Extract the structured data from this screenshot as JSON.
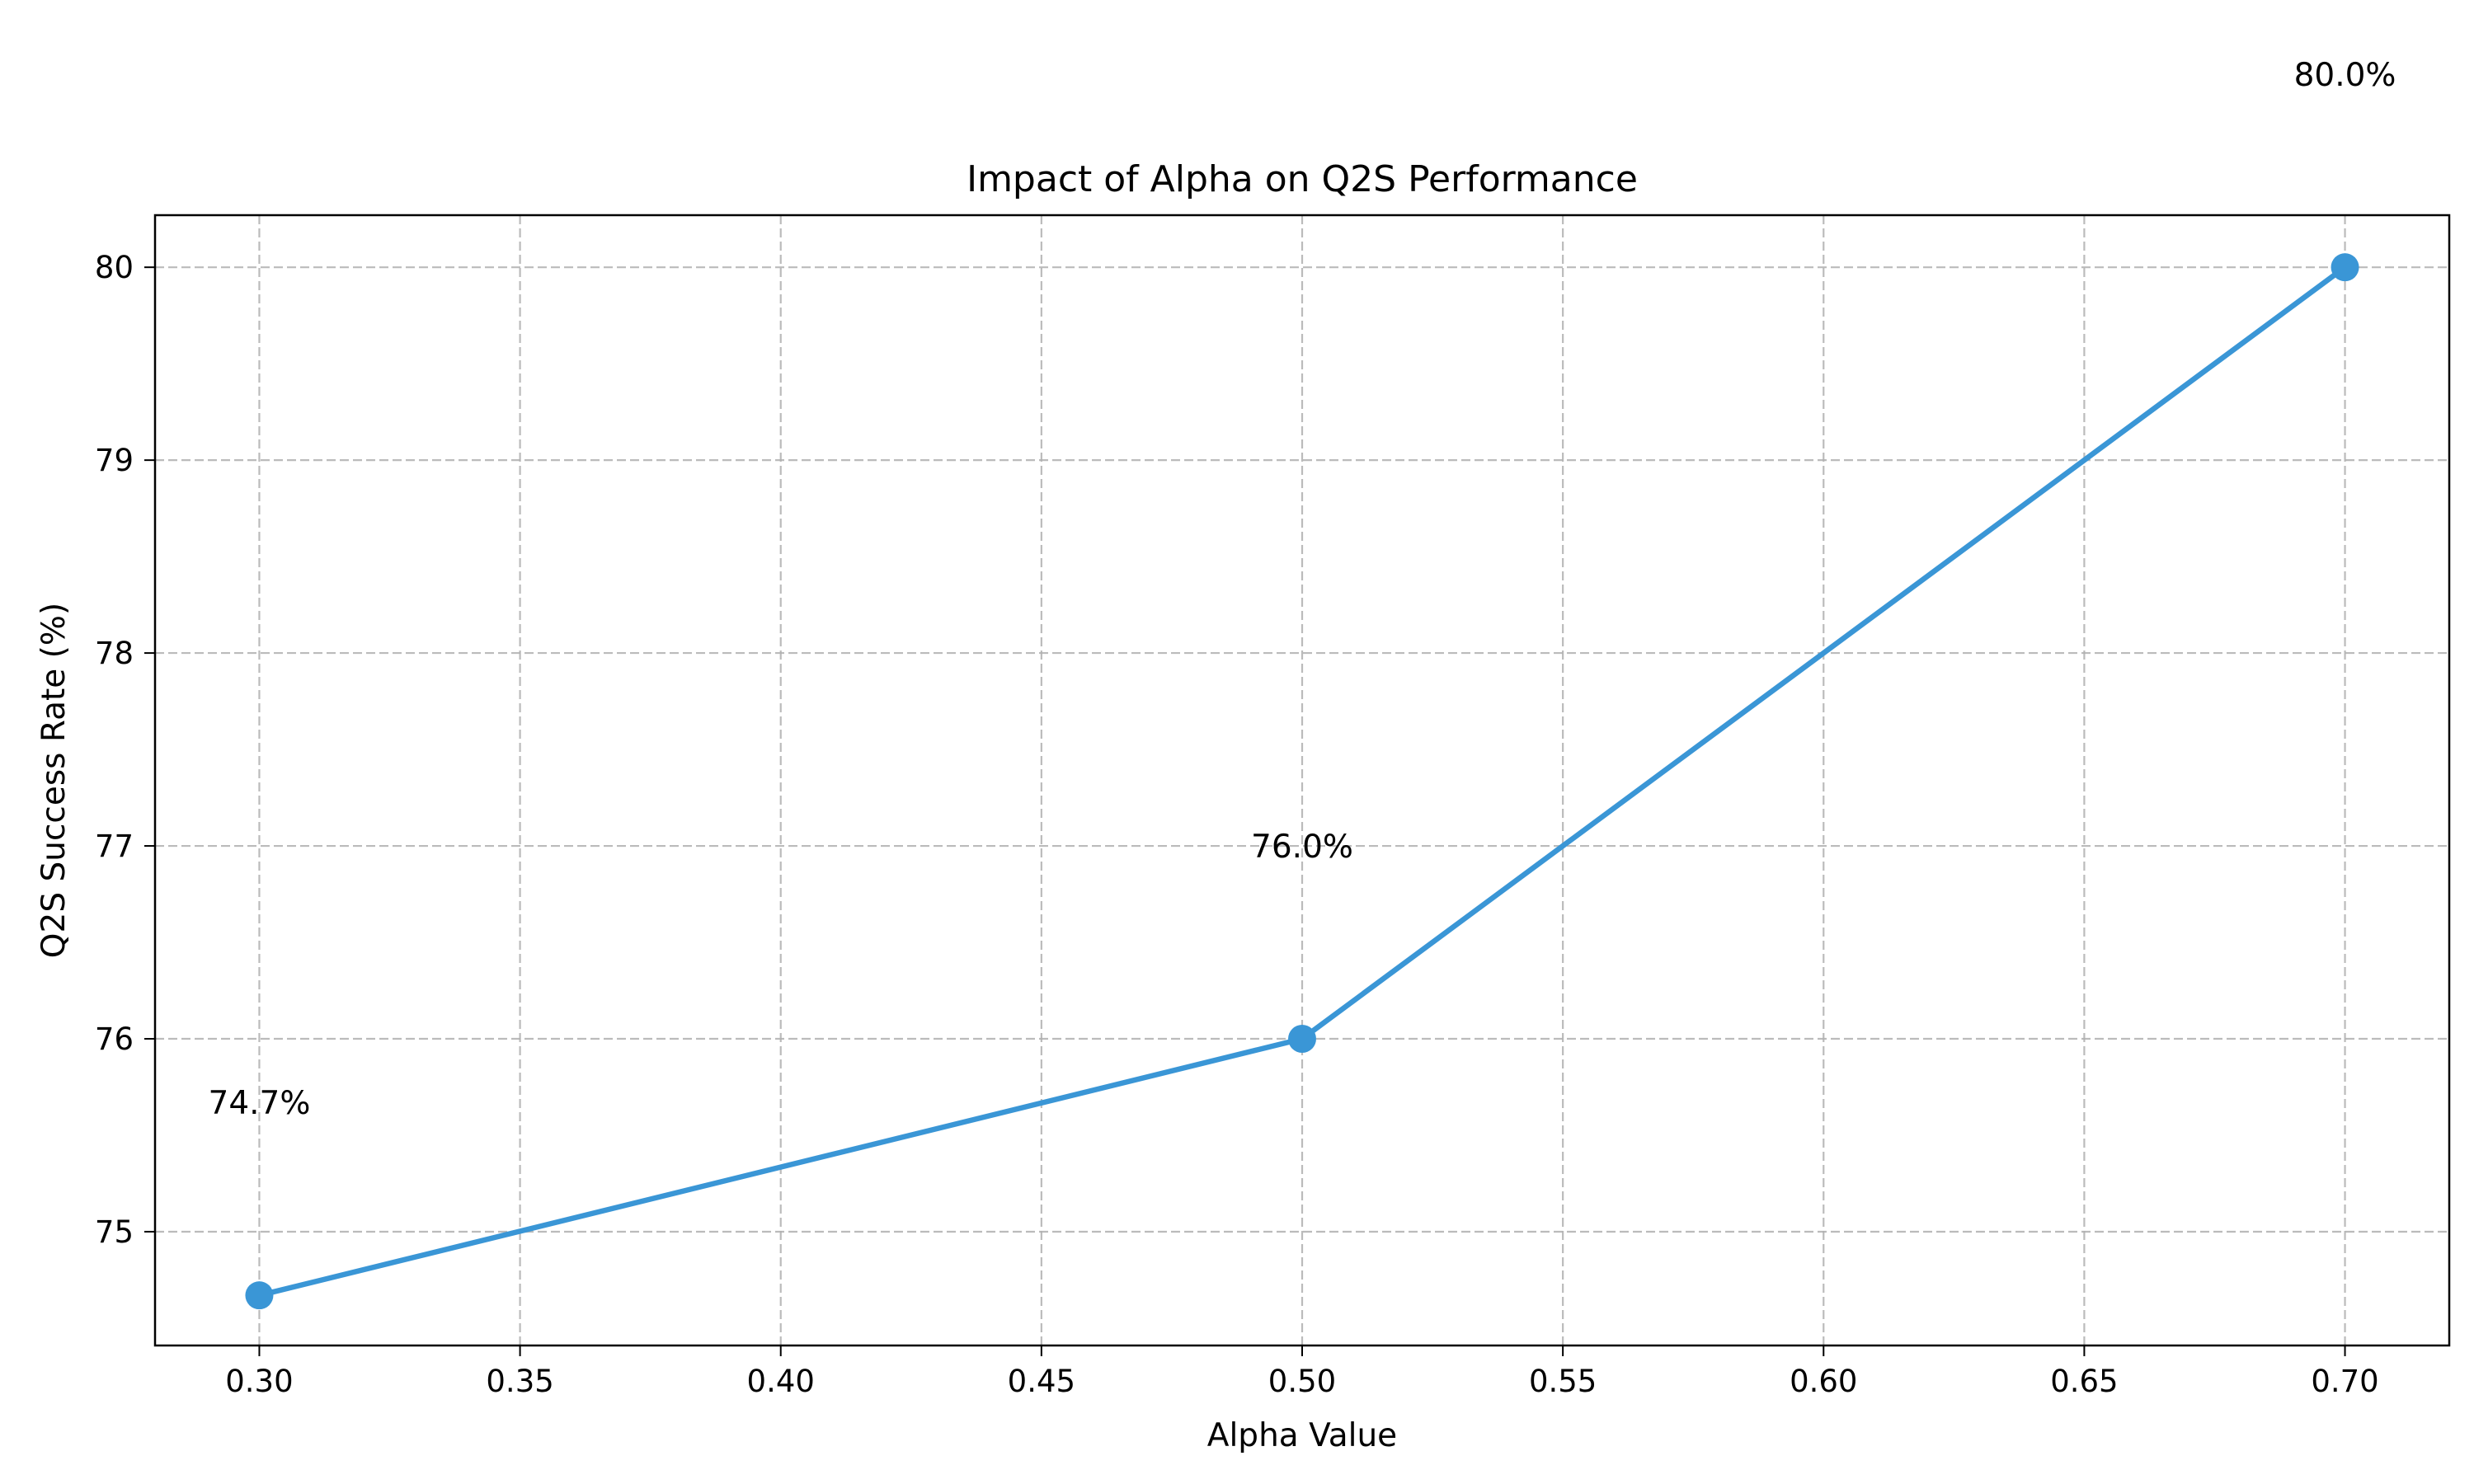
{
  "chart_data": {
    "type": "line",
    "title": "Impact of Alpha on Q2S Performance",
    "xlabel": "Alpha Value",
    "ylabel": "Q2S Success Rate (%)",
    "xlim": [
      0.28,
      0.72
    ],
    "ylim": [
      74.41,
      80.27
    ],
    "xticks": [
      0.3,
      0.35,
      0.4,
      0.45,
      0.5,
      0.55,
      0.6,
      0.65,
      0.7
    ],
    "xtick_labels": [
      "0.30",
      "0.35",
      "0.40",
      "0.45",
      "0.50",
      "0.55",
      "0.60",
      "0.65",
      "0.70"
    ],
    "yticks": [
      75,
      76,
      77,
      78,
      79,
      80
    ],
    "ytick_labels": [
      "75",
      "76",
      "77",
      "78",
      "79",
      "80"
    ],
    "grid": true,
    "series": [
      {
        "color": "#3a96d6",
        "x": [
          0.3,
          0.5,
          0.7
        ],
        "y": [
          74.67,
          76.0,
          80.0
        ],
        "labels": [
          "74.7%",
          "76.0%",
          "80.0%"
        ]
      }
    ]
  }
}
